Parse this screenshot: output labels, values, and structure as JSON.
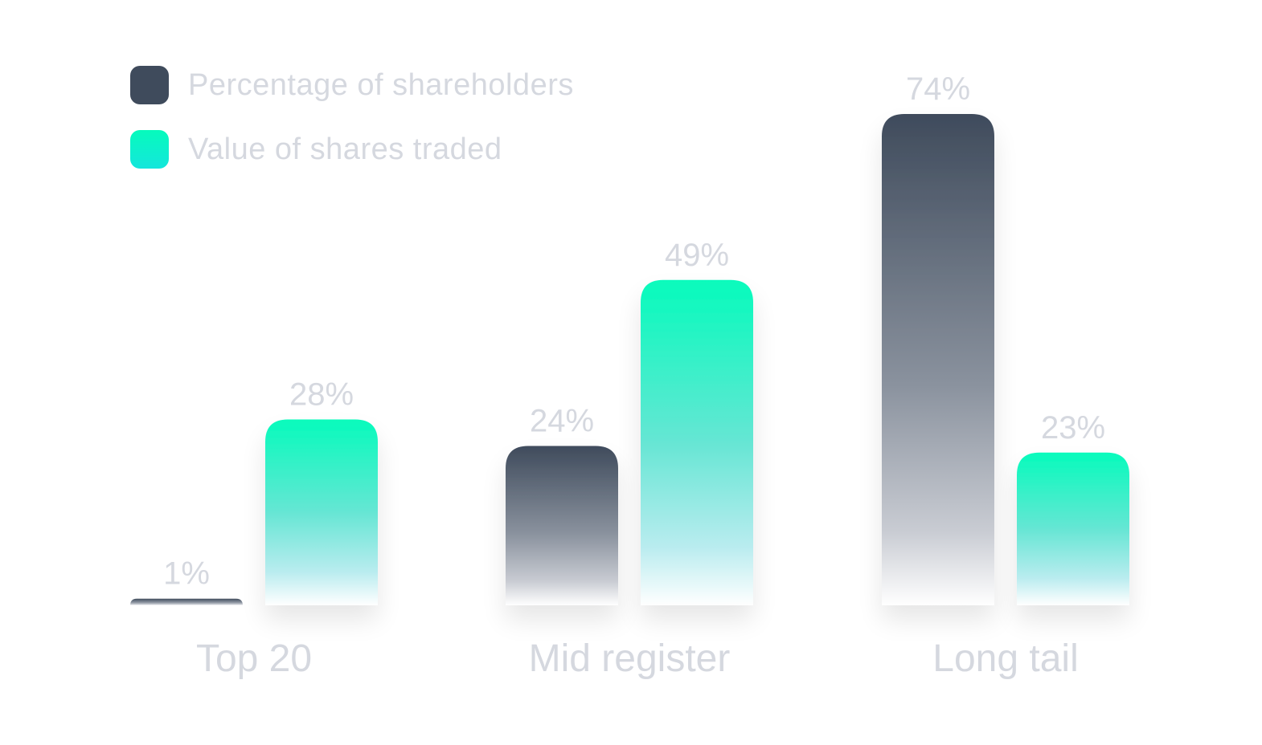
{
  "legend": {
    "items": [
      {
        "label": "Percentage of shareholders",
        "color": "#3f4b5c"
      },
      {
        "label": "Value of shares traded",
        "color": "#06fbbc"
      }
    ]
  },
  "chart_data": {
    "type": "bar",
    "title": "",
    "xlabel": "",
    "ylabel": "",
    "categories": [
      "Top 20",
      "Mid register",
      "Long tail"
    ],
    "series": [
      {
        "name": "Percentage of shareholders",
        "values": [
          1,
          24,
          74
        ],
        "labels": [
          "1%",
          "24%",
          "74%"
        ],
        "color": "#3f4b5c"
      },
      {
        "name": "Value of shares traded",
        "values": [
          28,
          49,
          23
        ],
        "labels": [
          "28%",
          "49%",
          "23%"
        ],
        "color": "#06fbbc"
      }
    ],
    "ylim": [
      0,
      100
    ],
    "grid": false,
    "legend_position": "top-left",
    "axis_lines": false,
    "colors": {
      "label_text": "#d5d8df",
      "series_dark_top": "#3f4b5c",
      "series_teal_top": "#06fbbc"
    }
  }
}
